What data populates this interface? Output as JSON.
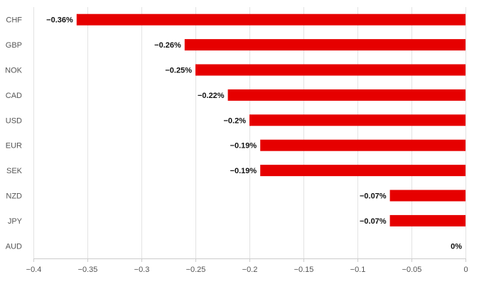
{
  "chart_data": {
    "type": "bar",
    "orientation": "horizontal",
    "categories": [
      "CHF",
      "GBP",
      "NOK",
      "CAD",
      "USD",
      "EUR",
      "SEK",
      "NZD",
      "JPY",
      "AUD"
    ],
    "values": [
      -0.36,
      -0.26,
      -0.25,
      -0.22,
      -0.2,
      -0.19,
      -0.19,
      -0.07,
      -0.07,
      0
    ],
    "data_labels": [
      "−0.36%",
      "−0.26%",
      "−0.25%",
      "−0.22%",
      "−0.2%",
      "−0.19%",
      "−0.19%",
      "−0.07%",
      "−0.07%",
      "0%"
    ],
    "xlim": [
      -0.4,
      0
    ],
    "x_ticks": [
      -0.4,
      -0.35,
      -0.3,
      -0.25,
      -0.2,
      -0.15,
      -0.1,
      -0.05,
      0
    ],
    "x_tick_labels": [
      "−0.4",
      "−0.35",
      "−0.3",
      "−0.25",
      "−0.2",
      "−0.15",
      "−0.1",
      "−0.05",
      "0"
    ],
    "bar_color": "#e60000",
    "grid": true,
    "title": "",
    "xlabel": "",
    "ylabel": ""
  }
}
